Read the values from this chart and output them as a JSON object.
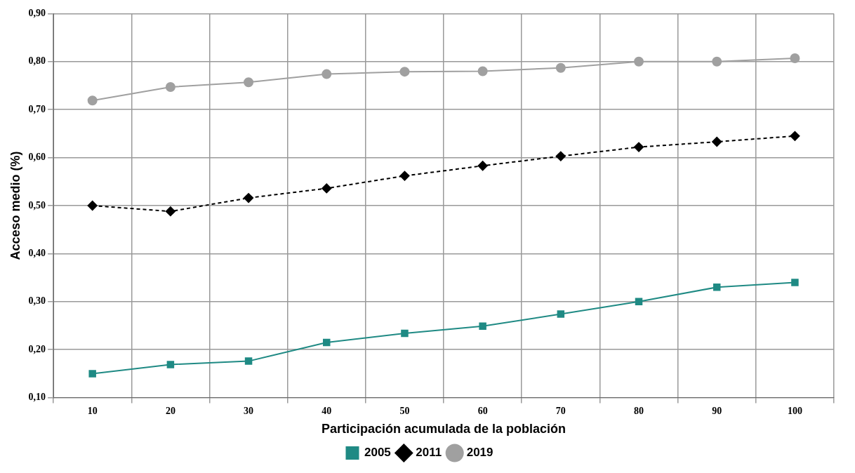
{
  "chart_data": {
    "type": "line",
    "xlabel": "Participación acumulada de la población",
    "ylabel": "Acceso medio (%)",
    "categories": [
      "10",
      "20",
      "30",
      "40",
      "50",
      "60",
      "70",
      "80",
      "90",
      "100"
    ],
    "series": [
      {
        "name": "2005",
        "color": "#1f8a84",
        "marker": "square",
        "line_style": "solid",
        "values": [
          0.15,
          0.169,
          0.176,
          0.215,
          0.234,
          0.249,
          0.274,
          0.3,
          0.33,
          0.34
        ]
      },
      {
        "name": "2011",
        "color": "#000000",
        "marker": "diamond",
        "line_style": "dashed",
        "values": [
          0.5,
          0.488,
          0.516,
          0.536,
          0.562,
          0.583,
          0.603,
          0.622,
          0.633,
          0.645
        ]
      },
      {
        "name": "2019",
        "color": "#a0a0a0",
        "marker": "circle",
        "line_style": "solid",
        "values": [
          0.719,
          0.747,
          0.757,
          0.774,
          0.779,
          0.78,
          0.787,
          0.8,
          0.8,
          0.807
        ]
      }
    ],
    "ylim": [
      0.1,
      0.9
    ],
    "yticks": [
      {
        "value": 0.1,
        "label": "0,10"
      },
      {
        "value": 0.2,
        "label": "0,20"
      },
      {
        "value": 0.3,
        "label": "0,30"
      },
      {
        "value": 0.4,
        "label": "0,40"
      },
      {
        "value": 0.5,
        "label": "0,50"
      },
      {
        "value": 0.6,
        "label": "0,60"
      },
      {
        "value": 0.7,
        "label": "0,70"
      },
      {
        "value": 0.8,
        "label": "0,80"
      },
      {
        "value": 0.9,
        "label": "0,90"
      }
    ],
    "grid": true,
    "legend": "bottom"
  }
}
